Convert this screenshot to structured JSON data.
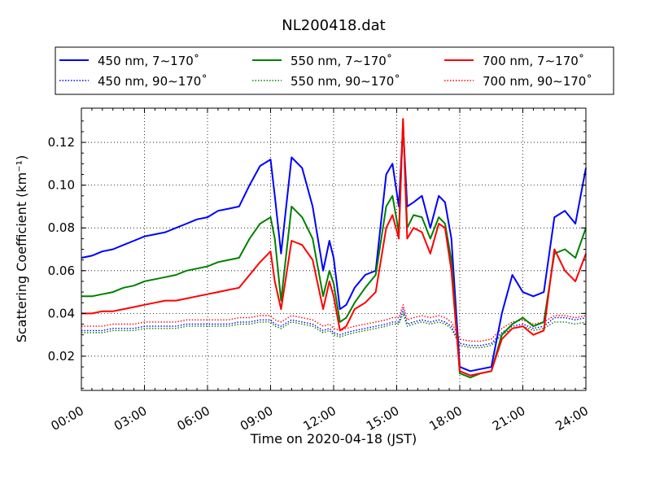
{
  "chart_data": {
    "type": "line",
    "title": "NL200418.dat",
    "xlabel": "Time on 2020-04-18 (JST)",
    "ylabel": "Scattering Coefficient (km⁻¹)",
    "x_unit": "hours",
    "xlim": [
      0,
      24
    ],
    "ylim": [
      0.004,
      0.136
    ],
    "x_ticks": [
      0,
      3,
      6,
      9,
      12,
      15,
      18,
      21,
      24
    ],
    "x_tick_labels": [
      "00:00",
      "03:00",
      "06:00",
      "09:00",
      "12:00",
      "15:00",
      "18:00",
      "21:00",
      "24:00"
    ],
    "y_ticks": [
      0.02,
      0.04,
      0.06,
      0.08,
      0.1,
      0.12
    ],
    "y_tick_labels": [
      "0.02",
      "0.04",
      "0.06",
      "0.08",
      "0.10",
      "0.12"
    ],
    "grid": true,
    "legend": {
      "placement": "top",
      "ncols": 3
    },
    "x": [
      0,
      0.5,
      1,
      1.5,
      2,
      2.5,
      3,
      3.5,
      4,
      4.5,
      5,
      5.5,
      6,
      6.5,
      7,
      7.5,
      8,
      8.5,
      9,
      9.2,
      9.5,
      10,
      10.5,
      11,
      11.5,
      11.8,
      12,
      12.3,
      12.6,
      13,
      13.5,
      14,
      14.5,
      14.8,
      15.1,
      15.3,
      15.5,
      15.8,
      16.2,
      16.6,
      17,
      17.3,
      17.6,
      18,
      18.5,
      19,
      19.5,
      20,
      20.5,
      21,
      21.5,
      22,
      22.5,
      23,
      23.5,
      24
    ],
    "series": [
      {
        "name": "450 nm, 7∼170˚",
        "color": "#0000ff",
        "style": "solid",
        "values": [
          0.066,
          0.067,
          0.069,
          0.07,
          0.072,
          0.074,
          0.076,
          0.077,
          0.078,
          0.08,
          0.082,
          0.084,
          0.085,
          0.088,
          0.089,
          0.09,
          0.1,
          0.109,
          0.112,
          0.095,
          0.068,
          0.113,
          0.108,
          0.09,
          0.06,
          0.074,
          0.066,
          0.042,
          0.044,
          0.052,
          0.058,
          0.06,
          0.105,
          0.11,
          0.09,
          0.128,
          0.09,
          0.092,
          0.095,
          0.08,
          0.095,
          0.092,
          0.075,
          0.015,
          0.013,
          0.014,
          0.015,
          0.04,
          0.058,
          0.05,
          0.048,
          0.05,
          0.085,
          0.088,
          0.082,
          0.108
        ]
      },
      {
        "name": "550 nm, 7∼170˚",
        "color": "#008000",
        "style": "solid",
        "values": [
          0.048,
          0.048,
          0.049,
          0.05,
          0.052,
          0.053,
          0.055,
          0.056,
          0.057,
          0.058,
          0.06,
          0.061,
          0.062,
          0.064,
          0.065,
          0.066,
          0.075,
          0.082,
          0.085,
          0.075,
          0.046,
          0.09,
          0.085,
          0.075,
          0.048,
          0.06,
          0.054,
          0.036,
          0.038,
          0.045,
          0.052,
          0.058,
          0.09,
          0.095,
          0.078,
          0.13,
          0.08,
          0.086,
          0.085,
          0.075,
          0.085,
          0.082,
          0.065,
          0.012,
          0.01,
          0.012,
          0.013,
          0.03,
          0.035,
          0.038,
          0.034,
          0.036,
          0.068,
          0.07,
          0.066,
          0.08
        ]
      },
      {
        "name": "700 nm, 7∼170˚",
        "color": "#ff0000",
        "style": "solid",
        "values": [
          0.04,
          0.04,
          0.041,
          0.041,
          0.042,
          0.043,
          0.044,
          0.045,
          0.046,
          0.046,
          0.047,
          0.048,
          0.049,
          0.05,
          0.051,
          0.052,
          0.058,
          0.064,
          0.069,
          0.055,
          0.042,
          0.074,
          0.072,
          0.065,
          0.042,
          0.055,
          0.048,
          0.032,
          0.034,
          0.042,
          0.045,
          0.05,
          0.08,
          0.086,
          0.075,
          0.131,
          0.075,
          0.08,
          0.078,
          0.068,
          0.082,
          0.08,
          0.06,
          0.013,
          0.011,
          0.012,
          0.013,
          0.028,
          0.033,
          0.034,
          0.03,
          0.032,
          0.07,
          0.06,
          0.055,
          0.068
        ]
      },
      {
        "name": "450 nm, 90∼170˚",
        "color": "#0000ff",
        "style": "dotted",
        "values": [
          0.032,
          0.032,
          0.032,
          0.033,
          0.033,
          0.033,
          0.034,
          0.034,
          0.034,
          0.034,
          0.035,
          0.035,
          0.035,
          0.035,
          0.035,
          0.036,
          0.036,
          0.037,
          0.037,
          0.035,
          0.034,
          0.037,
          0.036,
          0.035,
          0.032,
          0.033,
          0.031,
          0.03,
          0.031,
          0.032,
          0.033,
          0.034,
          0.035,
          0.036,
          0.036,
          0.042,
          0.035,
          0.036,
          0.037,
          0.036,
          0.037,
          0.036,
          0.034,
          0.026,
          0.025,
          0.025,
          0.026,
          0.031,
          0.034,
          0.035,
          0.033,
          0.034,
          0.038,
          0.038,
          0.037,
          0.038
        ]
      },
      {
        "name": "550 nm, 90∼170˚",
        "color": "#008000",
        "style": "dotted",
        "values": [
          0.031,
          0.031,
          0.031,
          0.032,
          0.032,
          0.032,
          0.033,
          0.033,
          0.033,
          0.033,
          0.034,
          0.034,
          0.034,
          0.034,
          0.034,
          0.035,
          0.035,
          0.036,
          0.036,
          0.034,
          0.033,
          0.036,
          0.035,
          0.034,
          0.031,
          0.032,
          0.03,
          0.029,
          0.03,
          0.031,
          0.032,
          0.033,
          0.034,
          0.035,
          0.035,
          0.04,
          0.034,
          0.035,
          0.036,
          0.035,
          0.036,
          0.035,
          0.033,
          0.025,
          0.024,
          0.024,
          0.025,
          0.03,
          0.033,
          0.034,
          0.032,
          0.033,
          0.036,
          0.036,
          0.035,
          0.036
        ]
      },
      {
        "name": "700 nm, 90∼170˚",
        "color": "#ff0000",
        "style": "dotted",
        "values": [
          0.034,
          0.034,
          0.034,
          0.035,
          0.035,
          0.035,
          0.036,
          0.036,
          0.036,
          0.036,
          0.037,
          0.037,
          0.037,
          0.037,
          0.037,
          0.038,
          0.038,
          0.039,
          0.039,
          0.037,
          0.036,
          0.039,
          0.038,
          0.037,
          0.034,
          0.035,
          0.033,
          0.032,
          0.033,
          0.034,
          0.035,
          0.036,
          0.037,
          0.038,
          0.038,
          0.044,
          0.037,
          0.038,
          0.039,
          0.038,
          0.039,
          0.038,
          0.036,
          0.028,
          0.027,
          0.027,
          0.028,
          0.033,
          0.036,
          0.037,
          0.035,
          0.036,
          0.039,
          0.039,
          0.038,
          0.039
        ]
      }
    ]
  }
}
